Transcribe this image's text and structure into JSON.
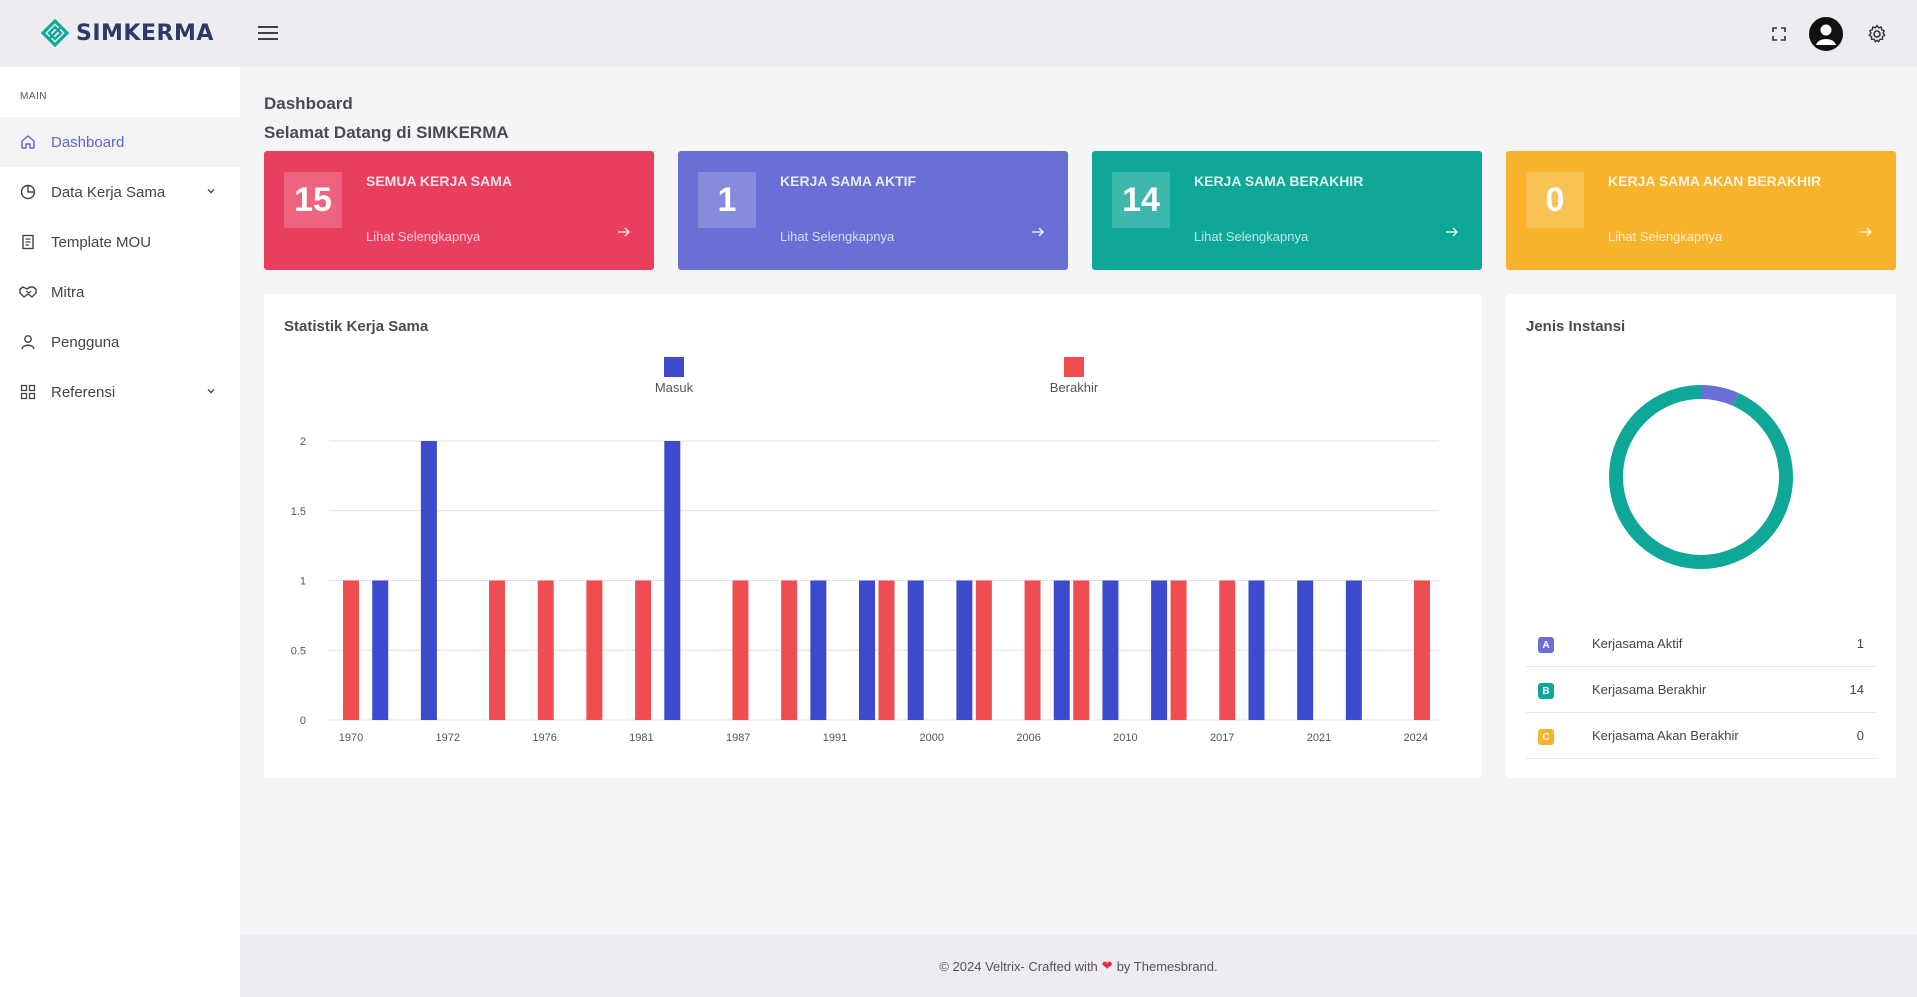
{
  "app": {
    "name": "SIMKERMA"
  },
  "sidebar": {
    "section": "MAIN",
    "items": [
      {
        "label": "Dashboard",
        "icon": "home-icon",
        "active": true
      },
      {
        "label": "Data Kerja Sama",
        "icon": "pie-chart-icon",
        "has_children": true
      },
      {
        "label": "Template MOU",
        "icon": "document-icon"
      },
      {
        "label": "Mitra",
        "icon": "handshake-icon"
      },
      {
        "label": "Pengguna",
        "icon": "user-icon"
      },
      {
        "label": "Referensi",
        "icon": "grid-icon",
        "has_children": true
      }
    ]
  },
  "page": {
    "title": "Dashboard",
    "subtitle": "Selamat Datang di SIMKERMA"
  },
  "stats": [
    {
      "value": "15",
      "label": "SEMUA KERJA SAMA",
      "link": "Lihat Selengkapnya",
      "color": "#ea3e5e"
    },
    {
      "value": "1",
      "label": "KERJA SAMA AKTIF",
      "link": "Lihat Selengkapnya",
      "color": "#6a6fd6"
    },
    {
      "value": "14",
      "label": "KERJA SAMA BERAKHIR",
      "link": "Lihat Selengkapnya",
      "color": "#0ea798"
    },
    {
      "value": "0",
      "label": "KERJA SAMA AKAN BERAKHIR",
      "link": "Lihat Selengkapnya",
      "color": "#f7b32b"
    }
  ],
  "statistik": {
    "title": "Statistik Kerja Sama"
  },
  "jenis": {
    "title": "Jenis Instansi",
    "rows": [
      {
        "badge": "A",
        "label": "Kerjasama Aktif",
        "value": "1",
        "color": "#6a6fd6"
      },
      {
        "badge": "B",
        "label": "Kerjasama Berakhir",
        "value": "14",
        "color": "#0ea798"
      },
      {
        "badge": "C",
        "label": "Kerjasama Akan Berakhir",
        "value": "0",
        "color": "#f7b32b"
      }
    ]
  },
  "footer": {
    "before": "© 2024 Veltrix- Crafted with",
    "after": "by Themesbrand."
  },
  "chart_data": [
    {
      "type": "bar",
      "series": [
        {
          "name": "Masuk",
          "color": "#3c4acb"
        },
        {
          "name": "Berakhir",
          "color": "#ee4d52"
        }
      ],
      "bars": [
        {
          "series": "Berakhir",
          "x": 1970.0,
          "value": 1
        },
        {
          "series": "Masuk",
          "x": 1970.6,
          "value": 1
        },
        {
          "series": "Masuk",
          "x": 1971.6,
          "value": 2
        },
        {
          "series": "Berakhir",
          "x": 1973.0,
          "value": 1
        },
        {
          "series": "Berakhir",
          "x": 1974.0,
          "value": 1
        },
        {
          "series": "Berakhir",
          "x": 1975.0,
          "value": 1
        },
        {
          "series": "Berakhir",
          "x": 1976.0,
          "value": 1
        },
        {
          "series": "Masuk",
          "x": 1976.6,
          "value": 2
        },
        {
          "series": "Berakhir",
          "x": 1978.0,
          "value": 1
        },
        {
          "series": "Berakhir",
          "x": 1979.0,
          "value": 1
        },
        {
          "series": "Masuk",
          "x": 1979.6,
          "value": 1
        },
        {
          "series": "Masuk",
          "x": 1980.6,
          "value": 1
        },
        {
          "series": "Berakhir",
          "x": 1981.0,
          "value": 1
        },
        {
          "series": "Masuk",
          "x": 1981.6,
          "value": 1
        },
        {
          "series": "Masuk",
          "x": 1982.6,
          "value": 1
        },
        {
          "series": "Berakhir",
          "x": 1983.0,
          "value": 1
        },
        {
          "series": "Berakhir",
          "x": 1984.0,
          "value": 1
        },
        {
          "series": "Masuk",
          "x": 1984.6,
          "value": 1
        },
        {
          "series": "Berakhir",
          "x": 1985.0,
          "value": 1
        },
        {
          "series": "Masuk",
          "x": 1985.6,
          "value": 1
        },
        {
          "series": "Masuk",
          "x": 1986.6,
          "value": 1
        },
        {
          "series": "Berakhir",
          "x": 1987.0,
          "value": 1
        },
        {
          "series": "Berakhir",
          "x": 1988.0,
          "value": 1
        },
        {
          "series": "Masuk",
          "x": 1988.6,
          "value": 1
        },
        {
          "series": "Masuk",
          "x": 1989.6,
          "value": 1
        },
        {
          "series": "Masuk",
          "x": 1990.6,
          "value": 1
        },
        {
          "series": "Berakhir",
          "x": 1992.0,
          "value": 1
        }
      ],
      "x_ticks": [
        "1970",
        "1972",
        "1976",
        "1981",
        "1987",
        "1991",
        "2000",
        "2006",
        "2010",
        "2017",
        "2021",
        "2024"
      ],
      "y_ticks": [
        "0",
        "0.5",
        "1",
        "1.5",
        "2"
      ],
      "ylim": [
        0,
        2
      ],
      "legend": "top",
      "grid": true
    },
    {
      "type": "pie",
      "style": "donut",
      "slices": [
        {
          "label": "Kerjasama Aktif",
          "value": 1,
          "color": "#6a6fd6"
        },
        {
          "label": "Kerjasama Berakhir",
          "value": 14,
          "color": "#0ea798"
        },
        {
          "label": "Kerjasama Akan Berakhir",
          "value": 0,
          "color": "#f7b32b"
        }
      ]
    }
  ]
}
